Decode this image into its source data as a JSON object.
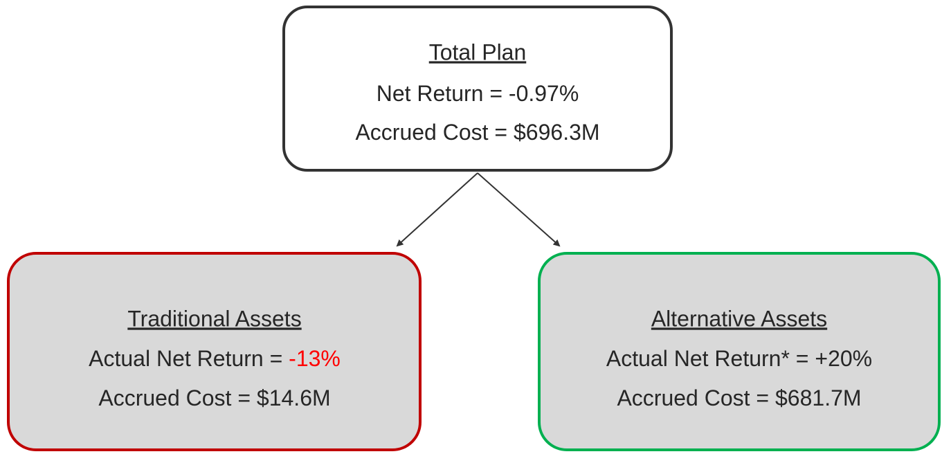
{
  "nodes": [
    {
      "title": "Total Plan",
      "lines": [
        {
          "label": "Net Return = ",
          "value": "-0.97%"
        },
        {
          "label": "Accrued Cost = ",
          "value": "$696.3M"
        }
      ]
    },
    {
      "title": "Traditional Assets",
      "lines": [
        {
          "label": "Actual Net Return = ",
          "value": "-13%",
          "color": "#ff0000"
        },
        {
          "label": "Accrued Cost = ",
          "value": "$14.6M"
        }
      ]
    },
    {
      "title": "Alternative Assets",
      "lines": [
        {
          "label": "Actual Net Return* = ",
          "value": "+20%"
        },
        {
          "label": "Accrued Cost = ",
          "value": "$681.7M"
        }
      ]
    }
  ]
}
